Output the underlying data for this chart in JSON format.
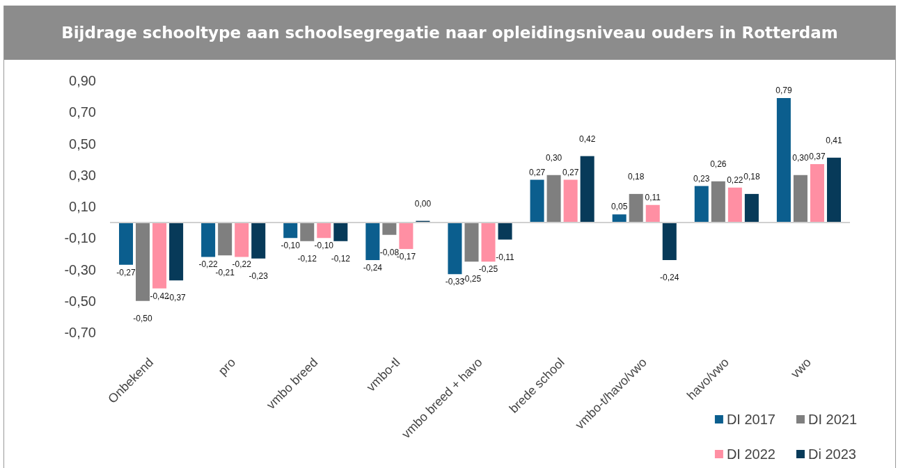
{
  "chart_data": {
    "type": "bar",
    "title": "Bijdrage schooltype aan schoolsegregatie naar opleidingsniveau ouders in Rotterdam",
    "categories": [
      "Onbekend",
      "pro",
      "vmbo breed",
      "vmbo-tl",
      "vmbo breed + havo",
      "brede school",
      "vmbo-t/havo/vwo",
      "havo/vwo",
      "vwo"
    ],
    "series": [
      {
        "name": "DI 2017",
        "color": "#0b5e8e",
        "values": [
          -0.27,
          -0.22,
          -0.1,
          -0.24,
          -0.33,
          0.27,
          0.05,
          0.23,
          0.79
        ],
        "value_labels": [
          "-0,27",
          "-0,22",
          "-0,10",
          "-0,24",
          "-0,33",
          "0,27",
          "0,05",
          "0,23",
          "0,79"
        ]
      },
      {
        "name": "DI 2021",
        "color": "#7f7f7f",
        "values": [
          -0.5,
          -0.21,
          -0.12,
          -0.08,
          -0.25,
          0.3,
          0.18,
          0.26,
          0.3
        ],
        "value_labels": [
          "-0,50",
          "-0,21",
          "-0,12",
          "-0,08",
          "-0,25",
          "0,30",
          "0,18",
          "0,26",
          "0,30"
        ]
      },
      {
        "name": "DI 2022",
        "color": "#ff8fa3",
        "values": [
          -0.42,
          -0.22,
          -0.1,
          -0.17,
          -0.25,
          0.27,
          0.11,
          0.22,
          0.37
        ],
        "value_labels": [
          "-0,42",
          "-0,22",
          "-0,10",
          "-0,17",
          "-0,25",
          "0,27",
          "0,11",
          "0,22",
          "0,37"
        ]
      },
      {
        "name": "Di 2023",
        "color": "#073a59",
        "values": [
          -0.37,
          -0.23,
          -0.12,
          0.0,
          -0.11,
          0.42,
          -0.24,
          0.18,
          0.41
        ],
        "value_labels": [
          "-0,37",
          "-0,23",
          "-0,12",
          "0,00",
          "-0,11",
          "0,42",
          "-0,24",
          "0,18",
          "0,41"
        ]
      }
    ],
    "ylim": [
      -0.7,
      0.9
    ],
    "yticks": [
      {
        "value": -0.7,
        "label": "-0,70"
      },
      {
        "value": -0.5,
        "label": "-0,50"
      },
      {
        "value": -0.3,
        "label": "-0,30"
      },
      {
        "value": -0.1,
        "label": "-0,10"
      },
      {
        "value": 0.1,
        "label": "0,10"
      },
      {
        "value": 0.3,
        "label": "0,30"
      },
      {
        "value": 0.5,
        "label": "0,50"
      },
      {
        "value": 0.7,
        "label": "0,70"
      },
      {
        "value": 0.9,
        "label": "0,90"
      }
    ],
    "grid": false,
    "legend": "bottom right"
  }
}
